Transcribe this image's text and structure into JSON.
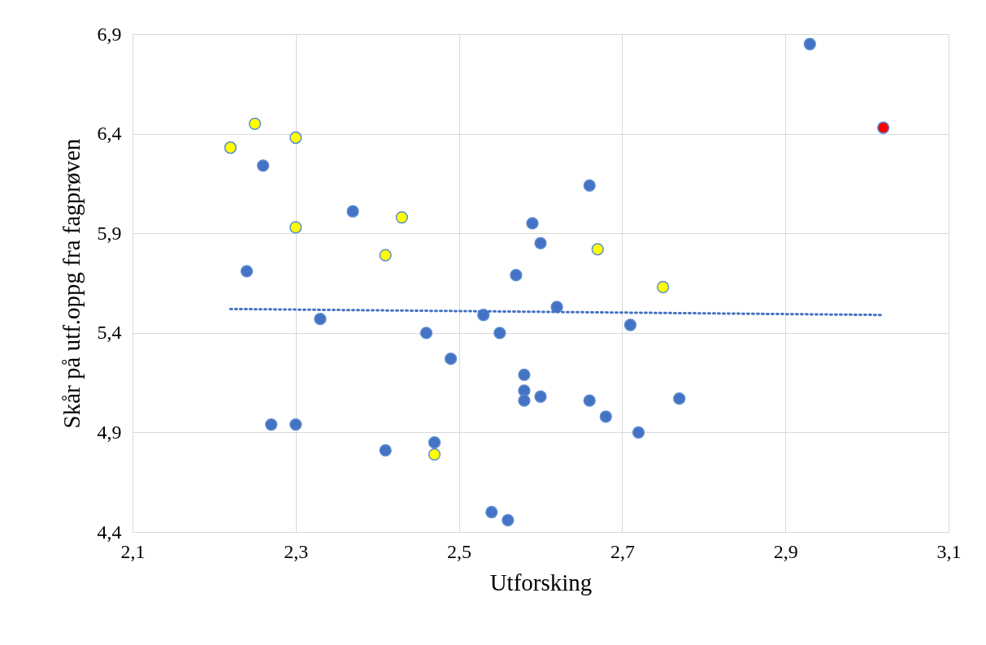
{
  "chart_data": {
    "type": "scatter",
    "xlabel": "Utforsking",
    "ylabel": "Skår på utf.oppg fra fagprøven",
    "xlim": [
      2.1,
      3.1
    ],
    "ylim": [
      4.4,
      6.9
    ],
    "xticks": [
      {
        "value": 2.1,
        "label": "2,1"
      },
      {
        "value": 2.3,
        "label": "2,3"
      },
      {
        "value": 2.5,
        "label": "2,5"
      },
      {
        "value": 2.7,
        "label": "2,7"
      },
      {
        "value": 2.9,
        "label": "2,9"
      },
      {
        "value": 3.1,
        "label": "3,1"
      }
    ],
    "yticks": [
      {
        "value": 4.4,
        "label": "4,4"
      },
      {
        "value": 4.9,
        "label": "4,9"
      },
      {
        "value": 5.4,
        "label": "5,4"
      },
      {
        "value": 5.9,
        "label": "5,9"
      },
      {
        "value": 6.4,
        "label": "6,4"
      },
      {
        "value": 6.9,
        "label": "6,9"
      }
    ],
    "grid": true,
    "marker": "circle",
    "series": [
      {
        "color": "#4472c4",
        "x": [
          2.93,
          2.26,
          2.66,
          2.37,
          2.59,
          2.6,
          2.24,
          2.57,
          2.62,
          2.53,
          2.33,
          2.71,
          2.46,
          2.55,
          2.49,
          2.58,
          2.58,
          2.6,
          2.58,
          2.66,
          2.77,
          2.68,
          2.27,
          2.3,
          2.72,
          2.41,
          2.47,
          2.54,
          2.56
        ],
        "values": [
          6.85,
          6.24,
          6.14,
          6.01,
          5.95,
          5.85,
          5.71,
          5.69,
          5.53,
          5.49,
          5.47,
          5.44,
          5.4,
          5.4,
          5.27,
          5.19,
          5.11,
          5.08,
          5.06,
          5.06,
          5.07,
          4.98,
          4.94,
          4.94,
          4.9,
          4.81,
          4.85,
          4.5,
          4.46
        ]
      },
      {
        "color": "#ffff00",
        "x": [
          2.25,
          2.22,
          2.3,
          2.3,
          2.43,
          2.41,
          2.67,
          2.75,
          2.47
        ],
        "values": [
          6.45,
          6.33,
          6.38,
          5.93,
          5.98,
          5.79,
          5.82,
          5.63,
          4.79
        ]
      },
      {
        "color": "#ff0000",
        "x": [
          3.02
        ],
        "values": [
          6.43
        ]
      },
      {
        "type": "line",
        "line_style": "dotted",
        "marker": "none",
        "color": "#4472c4",
        "x": [
          2.22,
          3.02
        ],
        "values": [
          5.52,
          5.49
        ]
      }
    ]
  }
}
